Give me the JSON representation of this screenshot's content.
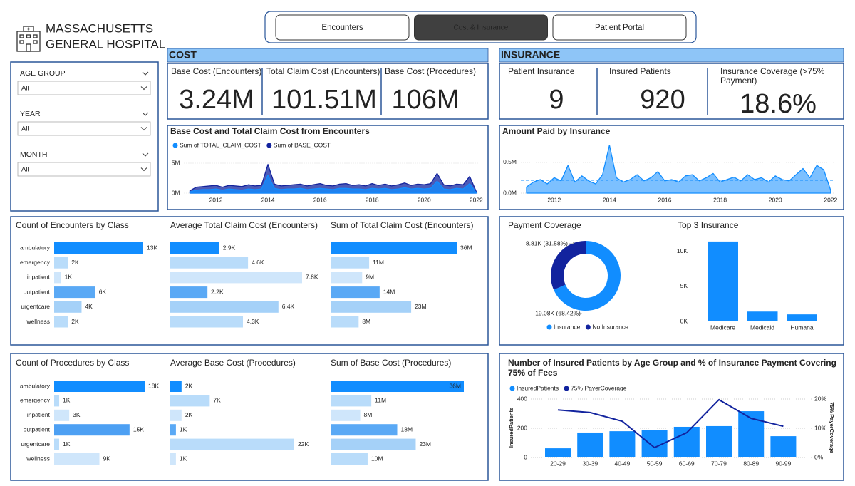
{
  "header": {
    "title_lines": [
      "MASSACHUSETTS",
      "GENERAL HOSPITAL"
    ]
  },
  "nav": {
    "buttons": [
      "Encounters",
      "Cost & Insurance",
      "Patient Portal"
    ],
    "active": 1
  },
  "filters": [
    {
      "label": "AGE GROUP",
      "value": "All"
    },
    {
      "label": "YEAR",
      "value": "All"
    },
    {
      "label": "MONTH",
      "value": "All"
    }
  ],
  "sections": {
    "cost": "COST",
    "insurance": "INSURANCE"
  },
  "kpis": {
    "cost": [
      {
        "label": "Base Cost (Encounters)",
        "value": "3.24M"
      },
      {
        "label": "Total Claim Cost (Encounters)",
        "value": "101.51M"
      },
      {
        "label": "Base Cost (Procedures)",
        "value": "106M"
      }
    ],
    "insurance": [
      {
        "label": "Patient Insurance",
        "value": "9"
      },
      {
        "label": "Insured Patients",
        "value": "920"
      },
      {
        "label": "Insurance Coverage (>75% Payment)",
        "value": "18.6%"
      }
    ]
  },
  "chart_data": [
    {
      "type": "area",
      "title": "Base Cost and Total Claim Cost from Encounters",
      "x": [
        2011,
        2011.25,
        2011.5,
        2011.75,
        2012,
        2012.25,
        2012.5,
        2012.75,
        2013,
        2013.25,
        2013.5,
        2013.75,
        2014,
        2014.25,
        2014.5,
        2014.75,
        2015,
        2015.25,
        2015.5,
        2015.75,
        2016,
        2016.25,
        2016.5,
        2016.75,
        2017,
        2017.25,
        2017.5,
        2017.75,
        2018,
        2018.25,
        2018.5,
        2018.75,
        2019,
        2019.25,
        2019.5,
        2019.75,
        2020,
        2020.25,
        2020.5,
        2020.75,
        2021,
        2021.25,
        2021.5,
        2021.75,
        2022
      ],
      "xlim": [
        2011,
        2022.1
      ],
      "xticks": [
        2012,
        2014,
        2016,
        2018,
        2020,
        2022
      ],
      "ylim": [
        0,
        5.5
      ],
      "yticks": [
        {
          "value": 0,
          "label": "0M"
        },
        {
          "value": 5,
          "label": "5M"
        }
      ],
      "grid": true,
      "series": [
        {
          "name": "Sum of TOTAL_CLAIM_COST",
          "color": "#118dff",
          "values": [
            0.2,
            0.5,
            0.6,
            0.6,
            0.7,
            0.5,
            0.7,
            0.6,
            0.5,
            0.7,
            0.6,
            0.7,
            3.0,
            0.8,
            0.6,
            0.7,
            0.7,
            0.8,
            0.6,
            0.7,
            0.8,
            0.7,
            0.6,
            0.8,
            0.8,
            0.7,
            0.7,
            0.6,
            0.8,
            0.7,
            0.8,
            0.6,
            0.7,
            0.9,
            0.7,
            0.8,
            0.7,
            0.8,
            2.0,
            0.7,
            0.6,
            0.8,
            0.7,
            1.6,
            0.1
          ]
        },
        {
          "name": "Sum of BASE_COST",
          "color": "#12239e",
          "values": [
            0.4,
            1.0,
            1.1,
            1.2,
            1.3,
            1.0,
            1.3,
            1.2,
            1.1,
            1.4,
            1.2,
            1.3,
            4.8,
            1.5,
            1.2,
            1.3,
            1.4,
            1.5,
            1.2,
            1.4,
            1.6,
            1.3,
            1.2,
            1.5,
            1.6,
            1.3,
            1.4,
            1.2,
            1.6,
            1.3,
            1.5,
            1.2,
            1.4,
            1.7,
            1.3,
            1.5,
            1.4,
            1.6,
            3.3,
            1.4,
            1.2,
            1.5,
            1.4,
            2.8,
            0.3
          ]
        }
      ]
    },
    {
      "type": "area",
      "title": "Amount Paid by Insurance",
      "x": [
        2011,
        2011.25,
        2011.5,
        2011.75,
        2012,
        2012.25,
        2012.5,
        2012.75,
        2013,
        2013.25,
        2013.5,
        2013.75,
        2014,
        2014.25,
        2014.5,
        2014.75,
        2015,
        2015.25,
        2015.5,
        2015.75,
        2016,
        2016.25,
        2016.5,
        2016.75,
        2017,
        2017.25,
        2017.5,
        2017.75,
        2018,
        2018.25,
        2018.5,
        2018.75,
        2019,
        2019.25,
        2019.5,
        2019.75,
        2020,
        2020.25,
        2020.5,
        2020.75,
        2021,
        2021.25,
        2021.5,
        2021.75,
        2022
      ],
      "xlim": [
        2011,
        2022.1
      ],
      "xticks": [
        2012,
        2014,
        2016,
        2018,
        2020,
        2022
      ],
      "ylim": [
        0,
        0.8
      ],
      "yticks": [
        {
          "value": 0,
          "label": "0.0M"
        },
        {
          "value": 0.5,
          "label": "0.5M"
        }
      ],
      "grid": true,
      "color": "#118dff",
      "values": [
        0.1,
        0.18,
        0.22,
        0.15,
        0.25,
        0.2,
        0.45,
        0.18,
        0.28,
        0.2,
        0.15,
        0.3,
        0.78,
        0.25,
        0.18,
        0.22,
        0.3,
        0.2,
        0.25,
        0.35,
        0.2,
        0.22,
        0.18,
        0.28,
        0.3,
        0.2,
        0.25,
        0.32,
        0.18,
        0.22,
        0.26,
        0.2,
        0.3,
        0.22,
        0.25,
        0.18,
        0.28,
        0.22,
        0.2,
        0.3,
        0.4,
        0.25,
        0.45,
        0.38,
        0.05
      ],
      "reference_line": 0.21
    },
    {
      "type": "hbar",
      "title": "Count of Encounters by Class",
      "categories": [
        "ambulatory",
        "emergency",
        "inpatient",
        "outpatient",
        "urgentcare",
        "wellness"
      ],
      "values": [
        13000,
        2000,
        1000,
        6000,
        4000,
        2000
      ],
      "value_labels": [
        "13K",
        "2K",
        "1K",
        "6K",
        "4K",
        "2K"
      ],
      "colors": [
        "#118dff",
        "#b9dcfa",
        "#cfe6fb",
        "#5aa9f5",
        "#a5d1f8",
        "#b9dcfa"
      ]
    },
    {
      "type": "hbar",
      "title": "Average Total Claim Cost (Encounters)",
      "values": [
        2900,
        4600,
        7800,
        2200,
        6400,
        4300
      ],
      "value_labels": [
        "2.9K",
        "4.6K",
        "7.8K",
        "2.2K",
        "6.4K",
        "4.3K"
      ],
      "colors": [
        "#118dff",
        "#b9dcfa",
        "#cfe6fb",
        "#5aa9f5",
        "#a5d1f8",
        "#b9dcfa"
      ]
    },
    {
      "type": "hbar",
      "title": "Sum of Total Claim Cost (Encounters)",
      "values": [
        36000000,
        11000000,
        9000000,
        14000000,
        23000000,
        8000000
      ],
      "value_labels": [
        "36M",
        "11M",
        "9M",
        "14M",
        "23M",
        "8M"
      ],
      "colors": [
        "#118dff",
        "#b9dcfa",
        "#cfe6fb",
        "#5aa9f5",
        "#a5d1f8",
        "#b9dcfa"
      ]
    },
    {
      "type": "pie",
      "title": "Payment Coverage",
      "categories": [
        "Insurance",
        "No Insurance"
      ],
      "values": [
        19080,
        8810
      ],
      "value_labels": [
        "19.08K (68.42%)",
        "8.81K (31.58%)"
      ],
      "colors": [
        "#118dff",
        "#12239e"
      ]
    },
    {
      "type": "bar",
      "title": "Top 3 Insurance",
      "categories": [
        "Medicare",
        "Medicaid",
        "Humana"
      ],
      "values": [
        11400,
        1400,
        1000
      ],
      "color": "#118dff",
      "ylim": [
        0,
        12000
      ],
      "yticks": [
        {
          "value": 0,
          "label": "0K"
        },
        {
          "value": 5000,
          "label": "5K"
        },
        {
          "value": 10000,
          "label": "10K"
        }
      ]
    },
    {
      "type": "hbar",
      "title": "Count of Procedures by Class",
      "categories": [
        "ambulatory",
        "emergency",
        "inpatient",
        "outpatient",
        "urgentcare",
        "wellness"
      ],
      "values": [
        18000,
        1000,
        3000,
        15000,
        1000,
        9000
      ],
      "value_labels": [
        "18K",
        "1K",
        "3K",
        "15K",
        "1K",
        "9K"
      ],
      "colors": [
        "#118dff",
        "#b9dcfa",
        "#cfe6fb",
        "#4da0f3",
        "#b9dcfa",
        "#cfe6fb"
      ]
    },
    {
      "type": "hbar",
      "title": "Average Base Cost (Procedures)",
      "values": [
        2000,
        7000,
        2000,
        1000,
        22000,
        1000
      ],
      "value_labels": [
        "2K",
        "7K",
        "2K",
        "1K",
        "22K",
        "1K"
      ],
      "colors": [
        "#118dff",
        "#b9dcfa",
        "#cfe6fb",
        "#5aa9f5",
        "#b9dcfa",
        "#cfe6fb"
      ]
    },
    {
      "type": "hbar",
      "title": "Sum of Base Cost (Procedures)",
      "values": [
        36000000,
        11000000,
        8000000,
        18000000,
        23000000,
        10000000
      ],
      "value_labels": [
        "36M",
        "11M",
        "8M",
        "18M",
        "23M",
        "10M"
      ],
      "colors": [
        "#118dff",
        "#b9dcfa",
        "#cfe6fb",
        "#5aa9f5",
        "#a5d1f8",
        "#b9dcfa"
      ]
    },
    {
      "type": "combo",
      "title": "Number of Insured Patients by Age Group and % of Insurance Payment Covering 75% of Fees",
      "categories": [
        "20-29",
        "30-39",
        "40-49",
        "50-59",
        "60-69",
        "70-79",
        "80-89",
        "90-99"
      ],
      "ylabel": "InsuredPatients",
      "y2label": "75% PayerCoverage",
      "ylim": [
        0,
        410
      ],
      "yticks": [
        0,
        200,
        400
      ],
      "y2lim": [
        0,
        20.5
      ],
      "y2ticks": [
        {
          "value": 0,
          "label": "0%"
        },
        {
          "value": 10,
          "label": "10%"
        },
        {
          "value": 20,
          "label": "20%"
        }
      ],
      "grid": true,
      "series": [
        {
          "name": "InsuredPatients",
          "color": "#118dff",
          "values": [
            63,
            171,
            180,
            190,
            210,
            215,
            317,
            146
          ]
        },
        {
          "name": "75% PayerCoverage",
          "color": "#12239e",
          "axis": "y2",
          "values": [
            16.3,
            15.4,
            12.4,
            3.4,
            8.5,
            19.8,
            13.4,
            10.7
          ]
        }
      ]
    }
  ]
}
